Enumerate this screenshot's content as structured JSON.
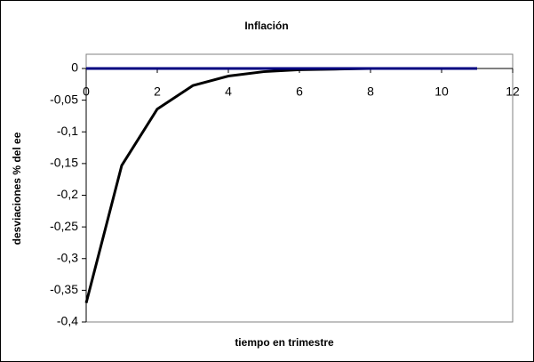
{
  "chart_data": {
    "type": "line",
    "title": "Inflación",
    "x_label": "tiempo en trimestre",
    "y_label": "desviaciones % del ee",
    "x": [
      0,
      1,
      2,
      3,
      4,
      5,
      6,
      7,
      8,
      9,
      10,
      11
    ],
    "series": [
      {
        "color": "#000000",
        "values": [
          -0.37,
          -0.153,
          -0.064,
          -0.027,
          -0.012,
          -0.005,
          -0.002,
          -0.001,
          0,
          0,
          0,
          0
        ]
      },
      {
        "color": "#000080",
        "values": [
          0,
          0,
          0,
          0,
          0,
          0,
          0,
          0,
          0,
          0,
          0,
          0
        ]
      }
    ],
    "xlim": [
      0,
      12
    ],
    "xticks": [
      0,
      2,
      4,
      6,
      8,
      10,
      12
    ],
    "ylim": [
      -0.4,
      0
    ],
    "yticks": [
      {
        "value": -0.4,
        "label": "-0,4"
      },
      {
        "value": -0.35,
        "label": "-0,35"
      },
      {
        "value": -0.3,
        "label": "-0,3"
      },
      {
        "value": -0.25,
        "label": "-0,25"
      },
      {
        "value": -0.2,
        "label": "-0,2"
      },
      {
        "value": -0.15,
        "label": "-0,15"
      },
      {
        "value": -0.1,
        "label": "-0,1"
      },
      {
        "value": -0.05,
        "label": "-0,05"
      },
      {
        "value": 0,
        "label": "0"
      }
    ],
    "grid": false
  }
}
